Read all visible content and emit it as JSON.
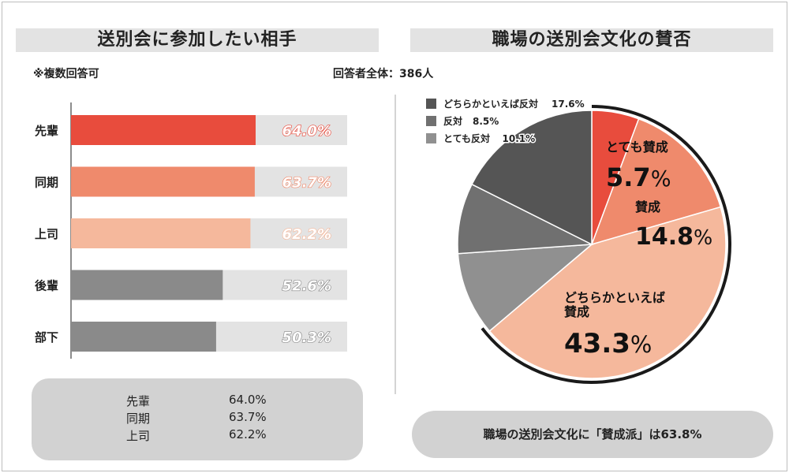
{
  "left_panel": {
    "title": "送別会に参加したい相手",
    "note": "※複数回答可",
    "summary": [
      {
        "label": "先輩",
        "value": "64.0%"
      },
      {
        "label": "同期",
        "value": "63.7%"
      },
      {
        "label": "上司",
        "value": "62.2%"
      }
    ]
  },
  "right_panel": {
    "title": "職場の送別会文化の賛否",
    "respondents": "回答者全体：386人",
    "summary": "職場の送別会文化に「賛成派」は63.8%"
  },
  "colors": {
    "red": "#e84c3d",
    "salmon": "#ef8a6c",
    "peach": "#f5b89c",
    "gray_bar": "#8a8a8a",
    "bar_track": "#e3e3e3",
    "dark_gray": "#555555",
    "mid_gray": "#707070",
    "light_gray": "#909090",
    "axis": "#666666"
  },
  "chart_data": [
    {
      "type": "bar",
      "orientation": "horizontal",
      "categories": [
        "先輩",
        "同期",
        "上司",
        "後輩",
        "部下"
      ],
      "values": [
        64.0,
        63.7,
        62.2,
        52.6,
        50.3
      ],
      "value_labels": [
        "64.0%",
        "63.7%",
        "62.2%",
        "52.6%",
        "50.3%"
      ],
      "bar_colors": [
        "#e84c3d",
        "#ef8a6c",
        "#f5b89c",
        "#8a8a8a",
        "#8a8a8a"
      ],
      "label_colors": [
        "#e84c3d",
        "#ef8a6c",
        "#f5b89c",
        "#8a8a8a",
        "#8a8a8a"
      ],
      "xlim": [
        0,
        100
      ]
    },
    {
      "type": "pie",
      "start": "top",
      "direction": "clockwise",
      "slices": [
        {
          "label": "とても賛成",
          "value": 5.7,
          "text": "5.7%",
          "color": "#e84c3d",
          "inside": true
        },
        {
          "label": "賛成",
          "value": 14.8,
          "text": "14.8%",
          "color": "#ef8a6c",
          "inside": true
        },
        {
          "label": "どちらかといえば賛成",
          "value": 43.3,
          "text": "43.3%",
          "color": "#f5b89c",
          "inside": true
        },
        {
          "label": "とても反対",
          "value": 10.1,
          "text": "10.1%",
          "color": "#909090",
          "inside": false
        },
        {
          "label": "反対",
          "value": 8.5,
          "text": "8.5%",
          "color": "#707070",
          "inside": false
        },
        {
          "label": "どちらかといえば反対",
          "value": 17.6,
          "text": "17.6%",
          "color": "#555555",
          "inside": false
        }
      ],
      "legend": [
        {
          "label": "どちらかといえば反対",
          "text": "17.6%",
          "color": "#555555"
        },
        {
          "label": "反対",
          "text": "8.5%",
          "color": "#707070"
        },
        {
          "label": "とても反対",
          "text": "10.1%",
          "color": "#909090"
        }
      ],
      "inside_labels": [
        {
          "lines": [
            "とても賛成"
          ],
          "value": "5.7%"
        },
        {
          "lines": [
            "賛成"
          ],
          "value": "14.8%"
        },
        {
          "lines": [
            "どちらかといえば",
            "賛成"
          ],
          "value": "43.3%"
        }
      ]
    }
  ]
}
